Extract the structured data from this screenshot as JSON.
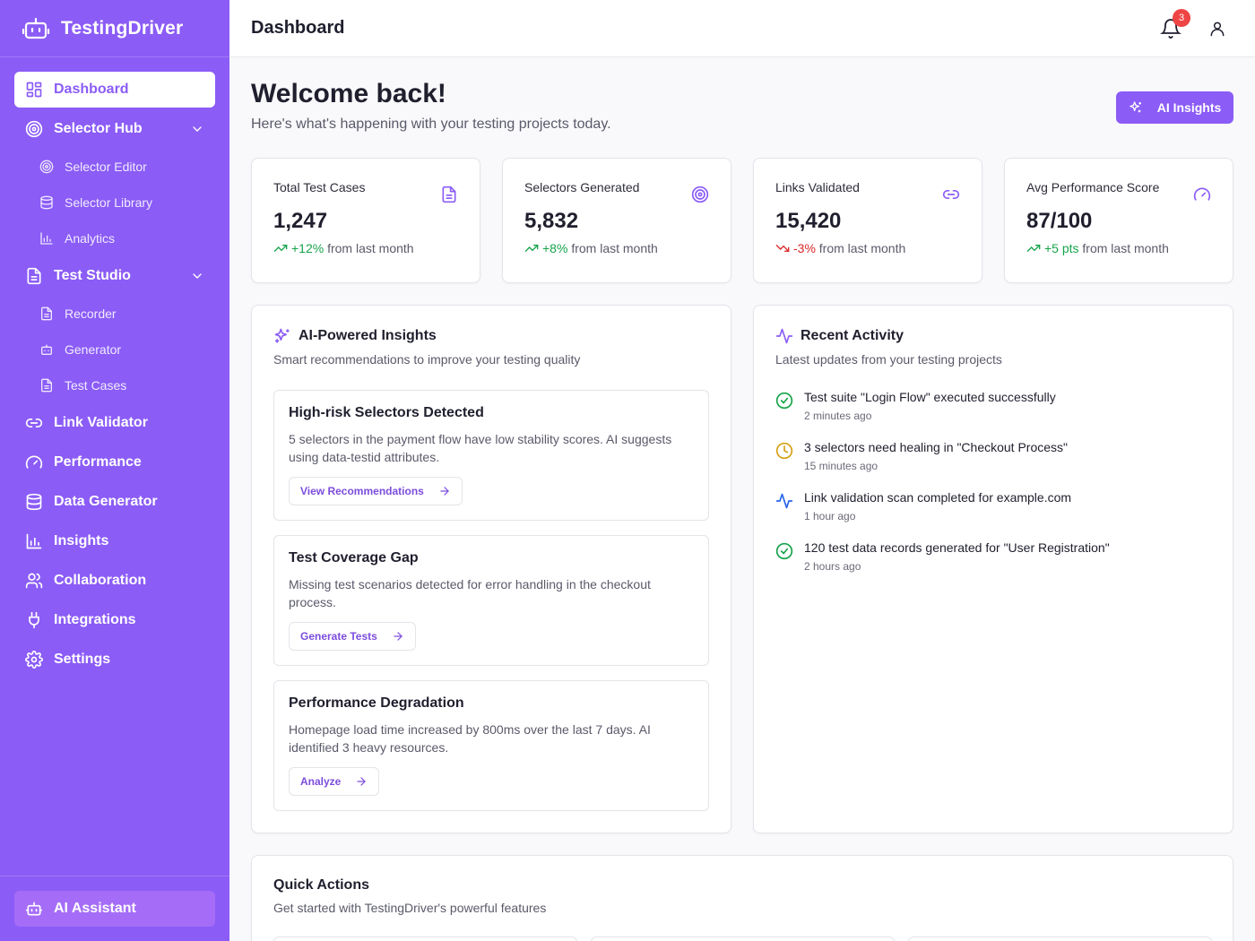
{
  "app": {
    "name": "TestingDriver"
  },
  "colors": {
    "brand": "#8b5cf6",
    "up": "#16a34a",
    "down": "#dc2626",
    "warning": "#d4a017",
    "info": "#2563eb"
  },
  "sidebar": {
    "items": [
      {
        "label": "Dashboard",
        "icon": "grid-icon",
        "active": true
      },
      {
        "label": "Selector Hub",
        "icon": "target-icon",
        "expanded": true,
        "children": [
          {
            "label": "Selector Editor",
            "icon": "target-icon"
          },
          {
            "label": "Selector Library",
            "icon": "database-icon"
          },
          {
            "label": "Analytics",
            "icon": "bar-chart-icon"
          }
        ]
      },
      {
        "label": "Test Studio",
        "icon": "file-text-icon",
        "expanded": true,
        "children": [
          {
            "label": "Recorder",
            "icon": "file-text-icon"
          },
          {
            "label": "Generator",
            "icon": "bot-icon"
          },
          {
            "label": "Test Cases",
            "icon": "file-text-icon"
          }
        ]
      },
      {
        "label": "Link Validator",
        "icon": "link-icon"
      },
      {
        "label": "Performance",
        "icon": "gauge-icon"
      },
      {
        "label": "Data Generator",
        "icon": "database-icon"
      },
      {
        "label": "Insights",
        "icon": "bar-chart-icon"
      },
      {
        "label": "Collaboration",
        "icon": "users-icon"
      },
      {
        "label": "Integrations",
        "icon": "plug-icon"
      },
      {
        "label": "Settings",
        "icon": "gear-icon"
      }
    ],
    "footer": {
      "label": "AI Assistant",
      "icon": "bot-icon"
    }
  },
  "header": {
    "title": "Dashboard",
    "notifications": "3"
  },
  "welcome": {
    "title": "Welcome back!",
    "subtitle": "Here's what's happening with your testing projects today.",
    "ai_button": "AI Insights"
  },
  "stats": [
    {
      "label": "Total Test Cases",
      "value": "1,247",
      "change": "+12%",
      "suffix": "from last month",
      "trend": "up",
      "icon": "file-text-icon"
    },
    {
      "label": "Selectors Generated",
      "value": "5,832",
      "change": "+8%",
      "suffix": "from last month",
      "trend": "up",
      "icon": "target-icon"
    },
    {
      "label": "Links Validated",
      "value": "15,420",
      "change": "-3%",
      "suffix": "from last month",
      "trend": "down",
      "icon": "link-icon"
    },
    {
      "label": "Avg Performance Score",
      "value": "87/100",
      "change": "+5 pts",
      "suffix": "from last month",
      "trend": "up",
      "icon": "gauge-icon"
    }
  ],
  "insights_panel": {
    "title": "AI-Powered Insights",
    "subtitle": "Smart recommendations to improve your testing quality",
    "items": [
      {
        "title": "High-risk Selectors Detected",
        "desc": "5 selectors in the payment flow have low stability scores. AI suggests using data-testid attributes.",
        "action": "View Recommendations"
      },
      {
        "title": "Test Coverage Gap",
        "desc": "Missing test scenarios detected for error handling in the checkout process.",
        "action": "Generate Tests"
      },
      {
        "title": "Performance Degradation",
        "desc": "Homepage load time increased by 800ms over the last 7 days. AI identified 3 heavy resources.",
        "action": "Analyze"
      }
    ]
  },
  "activity_panel": {
    "title": "Recent Activity",
    "subtitle": "Latest updates from your testing projects",
    "items": [
      {
        "text": "Test suite \"Login Flow\" executed successfully",
        "time": "2 minutes ago",
        "icon": "check-circle-icon"
      },
      {
        "text": "3 selectors need healing in \"Checkout Process\"",
        "time": "15 minutes ago",
        "icon": "clock-icon"
      },
      {
        "text": "Link validation scan completed for example.com",
        "time": "1 hour ago",
        "icon": "activity-icon"
      },
      {
        "text": "120 test data records generated for \"User Registration\"",
        "time": "2 hours ago",
        "icon": "check-circle-icon"
      }
    ]
  },
  "quick_actions": {
    "title": "Quick Actions",
    "subtitle": "Get started with TestingDriver's powerful features"
  }
}
